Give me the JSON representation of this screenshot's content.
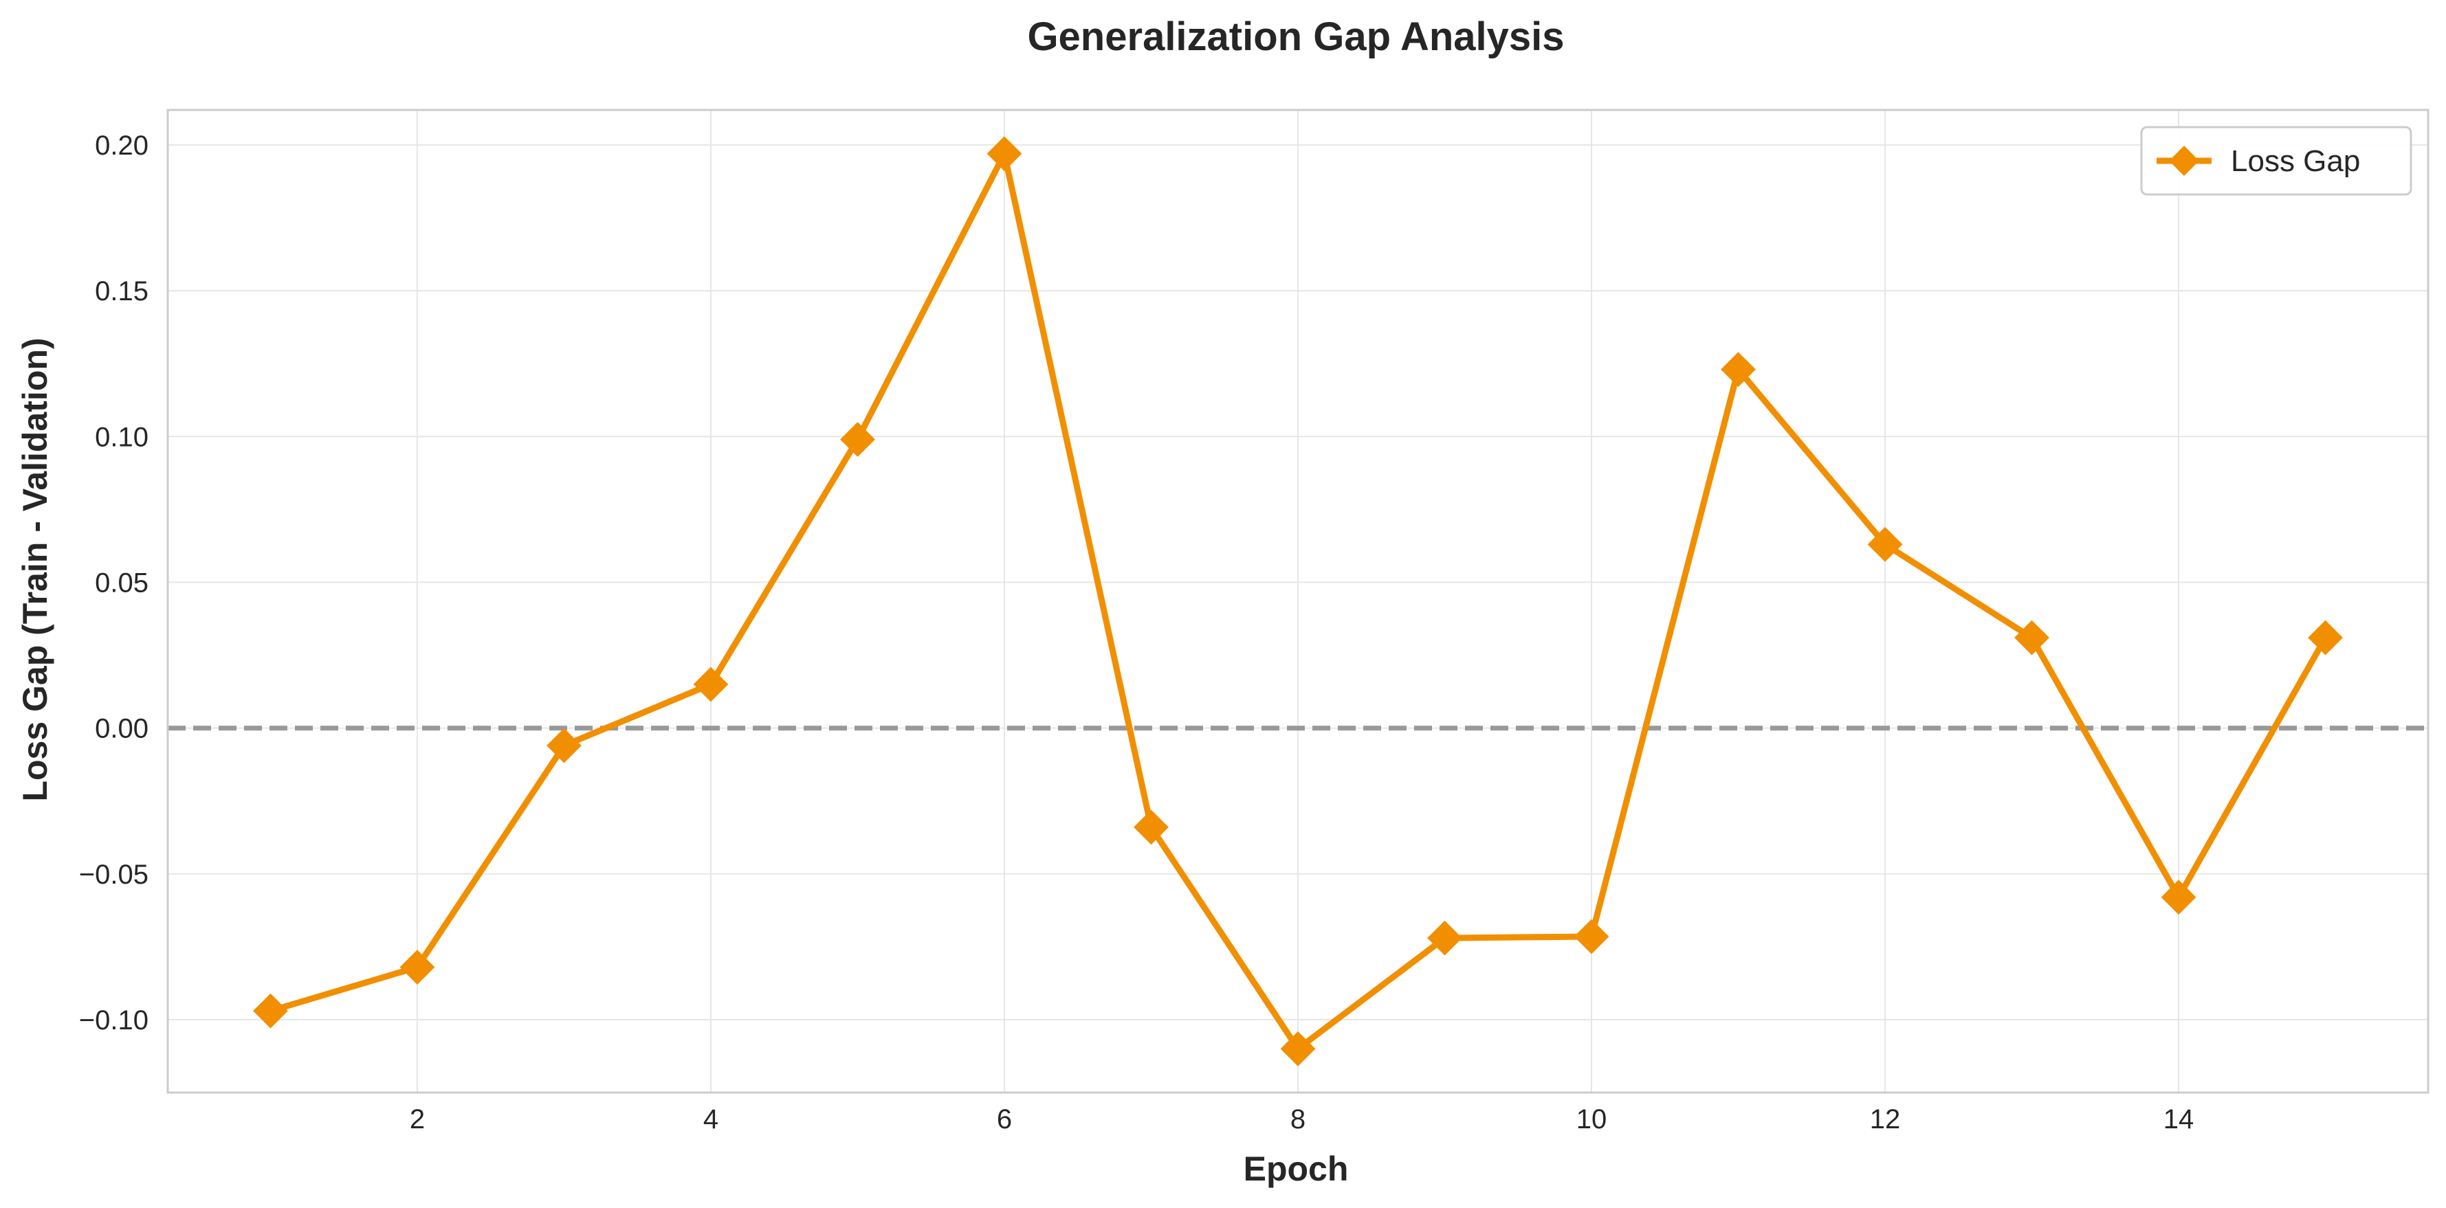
{
  "chart_data": {
    "type": "line",
    "title": "Generalization Gap Analysis",
    "xlabel": "Epoch",
    "ylabel": "Loss Gap (Train - Validation)",
    "xlim": [
      0.3,
      15.7
    ],
    "ylim": [
      -0.125,
      0.212
    ],
    "x_ticks": [
      2,
      4,
      6,
      8,
      10,
      12,
      14
    ],
    "y_ticks": [
      -0.1,
      -0.05,
      0.0,
      0.05,
      0.1,
      0.15,
      0.2
    ],
    "y_tick_labels": [
      "−0.10",
      "−0.05",
      "0.00",
      "0.05",
      "0.10",
      "0.15",
      "0.20"
    ],
    "x_tick_labels": [
      "2",
      "4",
      "6",
      "8",
      "10",
      "12",
      "14"
    ],
    "grid": true,
    "legend_position": "top-right",
    "reference_line": {
      "y": 0.0,
      "style": "dashed",
      "color": "#999999"
    },
    "x": [
      1,
      2,
      3,
      4,
      5,
      6,
      7,
      8,
      9,
      10,
      11,
      12,
      13,
      14,
      15
    ],
    "series": [
      {
        "name": "Loss Gap",
        "color": "#f18f01",
        "marker": "diamond",
        "values": [
          -0.097,
          -0.082,
          -0.006,
          0.015,
          0.099,
          0.197,
          -0.034,
          -0.11,
          -0.072,
          -0.0715,
          0.123,
          0.063,
          0.031,
          -0.058,
          0.031
        ]
      }
    ]
  }
}
